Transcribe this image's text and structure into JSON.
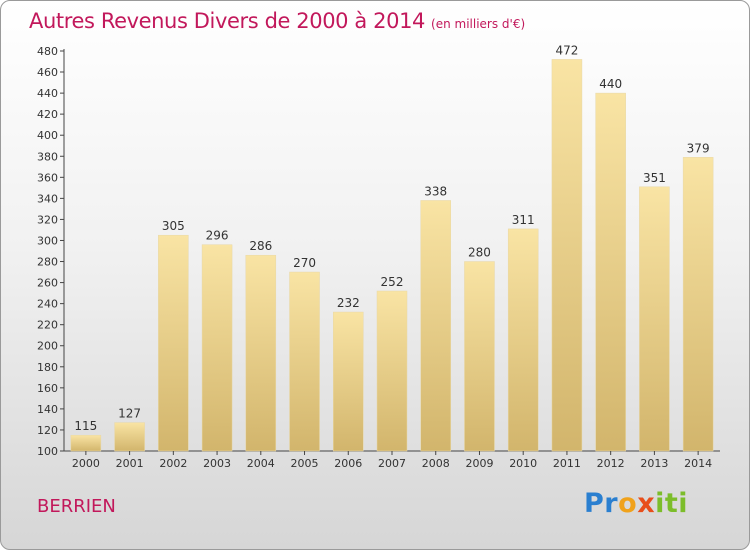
{
  "header": {
    "title": "Autres Revenus Divers de 2000 à 2014",
    "subtitle": "(en milliers d'€)"
  },
  "place_name": "BERRIEN",
  "brand": {
    "letters": [
      "P",
      "r",
      "o",
      "x",
      "i",
      "ti"
    ]
  },
  "colors": {
    "title": "#c2185b",
    "bar_light": "#f9e4a4",
    "bar_dark": "#d2b56c"
  },
  "chart_data": {
    "type": "bar",
    "title": "Autres Revenus Divers de 2000 à 2014",
    "subtitle": "(en milliers d'€)",
    "categories": [
      "2000",
      "2001",
      "2002",
      "2003",
      "2004",
      "2005",
      "2006",
      "2007",
      "2008",
      "2009",
      "2010",
      "2011",
      "2012",
      "2013",
      "2014"
    ],
    "values": [
      115,
      127,
      305,
      296,
      286,
      270,
      232,
      252,
      338,
      280,
      311,
      472,
      440,
      351,
      379
    ],
    "ylim": [
      100,
      480
    ],
    "ytick_step": 20,
    "grid": false,
    "xlabel": "",
    "ylabel": ""
  }
}
